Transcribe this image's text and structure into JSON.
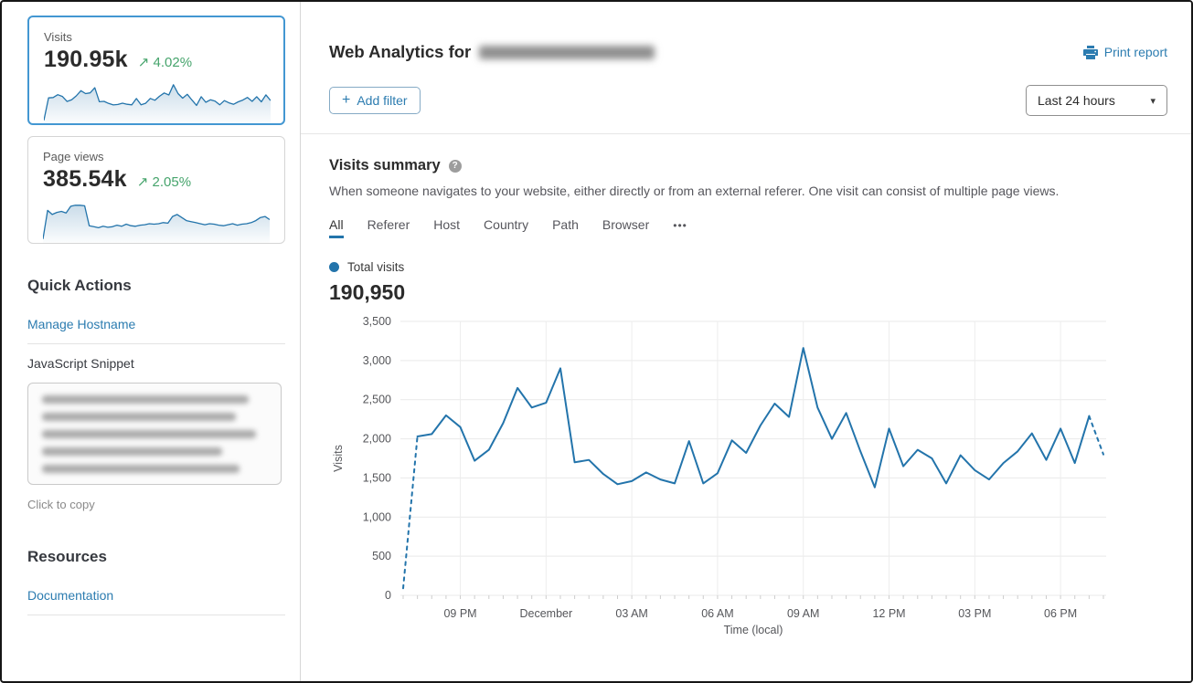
{
  "colors": {
    "accent_link_blue": "#2c7cb0",
    "chart_line_blue": "#2374ab",
    "positive_green": "#46a46c",
    "selected_card_border": "#4397d2",
    "grid_gray": "#e9e9e9",
    "axis_text_gray": "#55565a"
  },
  "icons": {
    "plus": "+",
    "caret_down": "▾",
    "trend_up_arrow": "↗",
    "more_dots": "•••",
    "help": "?"
  },
  "sidebar": {
    "visits_card": {
      "label": "Visits",
      "value": "190.95k",
      "delta_arrow": "↗",
      "delta": "4.02%"
    },
    "pageviews_card": {
      "label": "Page views",
      "value": "385.54k",
      "delta_arrow": "↗",
      "delta": "2.05%",
      "trend": [
        4,
        60,
        52,
        56,
        58,
        55,
        68,
        70,
        70,
        69,
        30,
        28,
        26,
        29,
        27,
        28,
        31,
        29,
        33,
        30,
        29,
        31,
        32,
        34,
        33,
        34,
        36,
        35,
        48,
        52,
        46,
        40,
        38,
        36,
        34,
        32,
        34,
        33,
        31,
        30,
        32,
        34,
        31,
        33,
        34,
        36,
        40,
        46,
        48,
        42
      ]
    },
    "quick_actions_title": "Quick Actions",
    "manage_hostname_label": "Manage Hostname",
    "javascript_snippet_label": "JavaScript Snippet",
    "click_to_copy_label": "Click to copy",
    "resources_title": "Resources",
    "documentation_label": "Documentation"
  },
  "header": {
    "title_prefix": "Web Analytics for",
    "print_report_label": "Print report",
    "add_filter_label": "Add filter",
    "time_range_value": "Last 24 hours"
  },
  "summary": {
    "title": "Visits summary",
    "description": "When someone navigates to your website, either directly or from an external referer. One visit can consist of multiple page views.",
    "tabs": [
      "All",
      "Referer",
      "Host",
      "Country",
      "Path",
      "Browser"
    ],
    "active_tab": "All",
    "legend_label": "Total visits",
    "total_value": "190,950"
  },
  "chart_data": {
    "type": "line",
    "title": "Total visits",
    "xlabel": "Time (local)",
    "ylabel": "Visits",
    "ylim": [
      0,
      3500
    ],
    "y_ticks": [
      0,
      500,
      1000,
      1500,
      2000,
      2500,
      3000,
      3500
    ],
    "x_tick_labels": [
      "09 PM",
      "December",
      "03 AM",
      "06 AM",
      "09 AM",
      "12 PM",
      "03 PM",
      "06 PM"
    ],
    "x_tick_indices": [
      4,
      10,
      16,
      22,
      28,
      34,
      40,
      46
    ],
    "grid": true,
    "legend_position": "top-left",
    "line_color": "#2374ab",
    "dashed_first_segment": true,
    "dashed_last_segment": true,
    "values": [
      90,
      2030,
      2060,
      2300,
      2150,
      1720,
      1860,
      2200,
      2650,
      2400,
      2460,
      2900,
      1700,
      1730,
      1550,
      1420,
      1460,
      1570,
      1480,
      1430,
      1970,
      1430,
      1560,
      1980,
      1820,
      2170,
      2450,
      2280,
      3160,
      2400,
      2000,
      2330,
      1840,
      1380,
      2130,
      1650,
      1860,
      1750,
      1430,
      1790,
      1600,
      1480,
      1690,
      1840,
      2070,
      1730,
      2130,
      1690,
      2290,
      1800
    ]
  }
}
